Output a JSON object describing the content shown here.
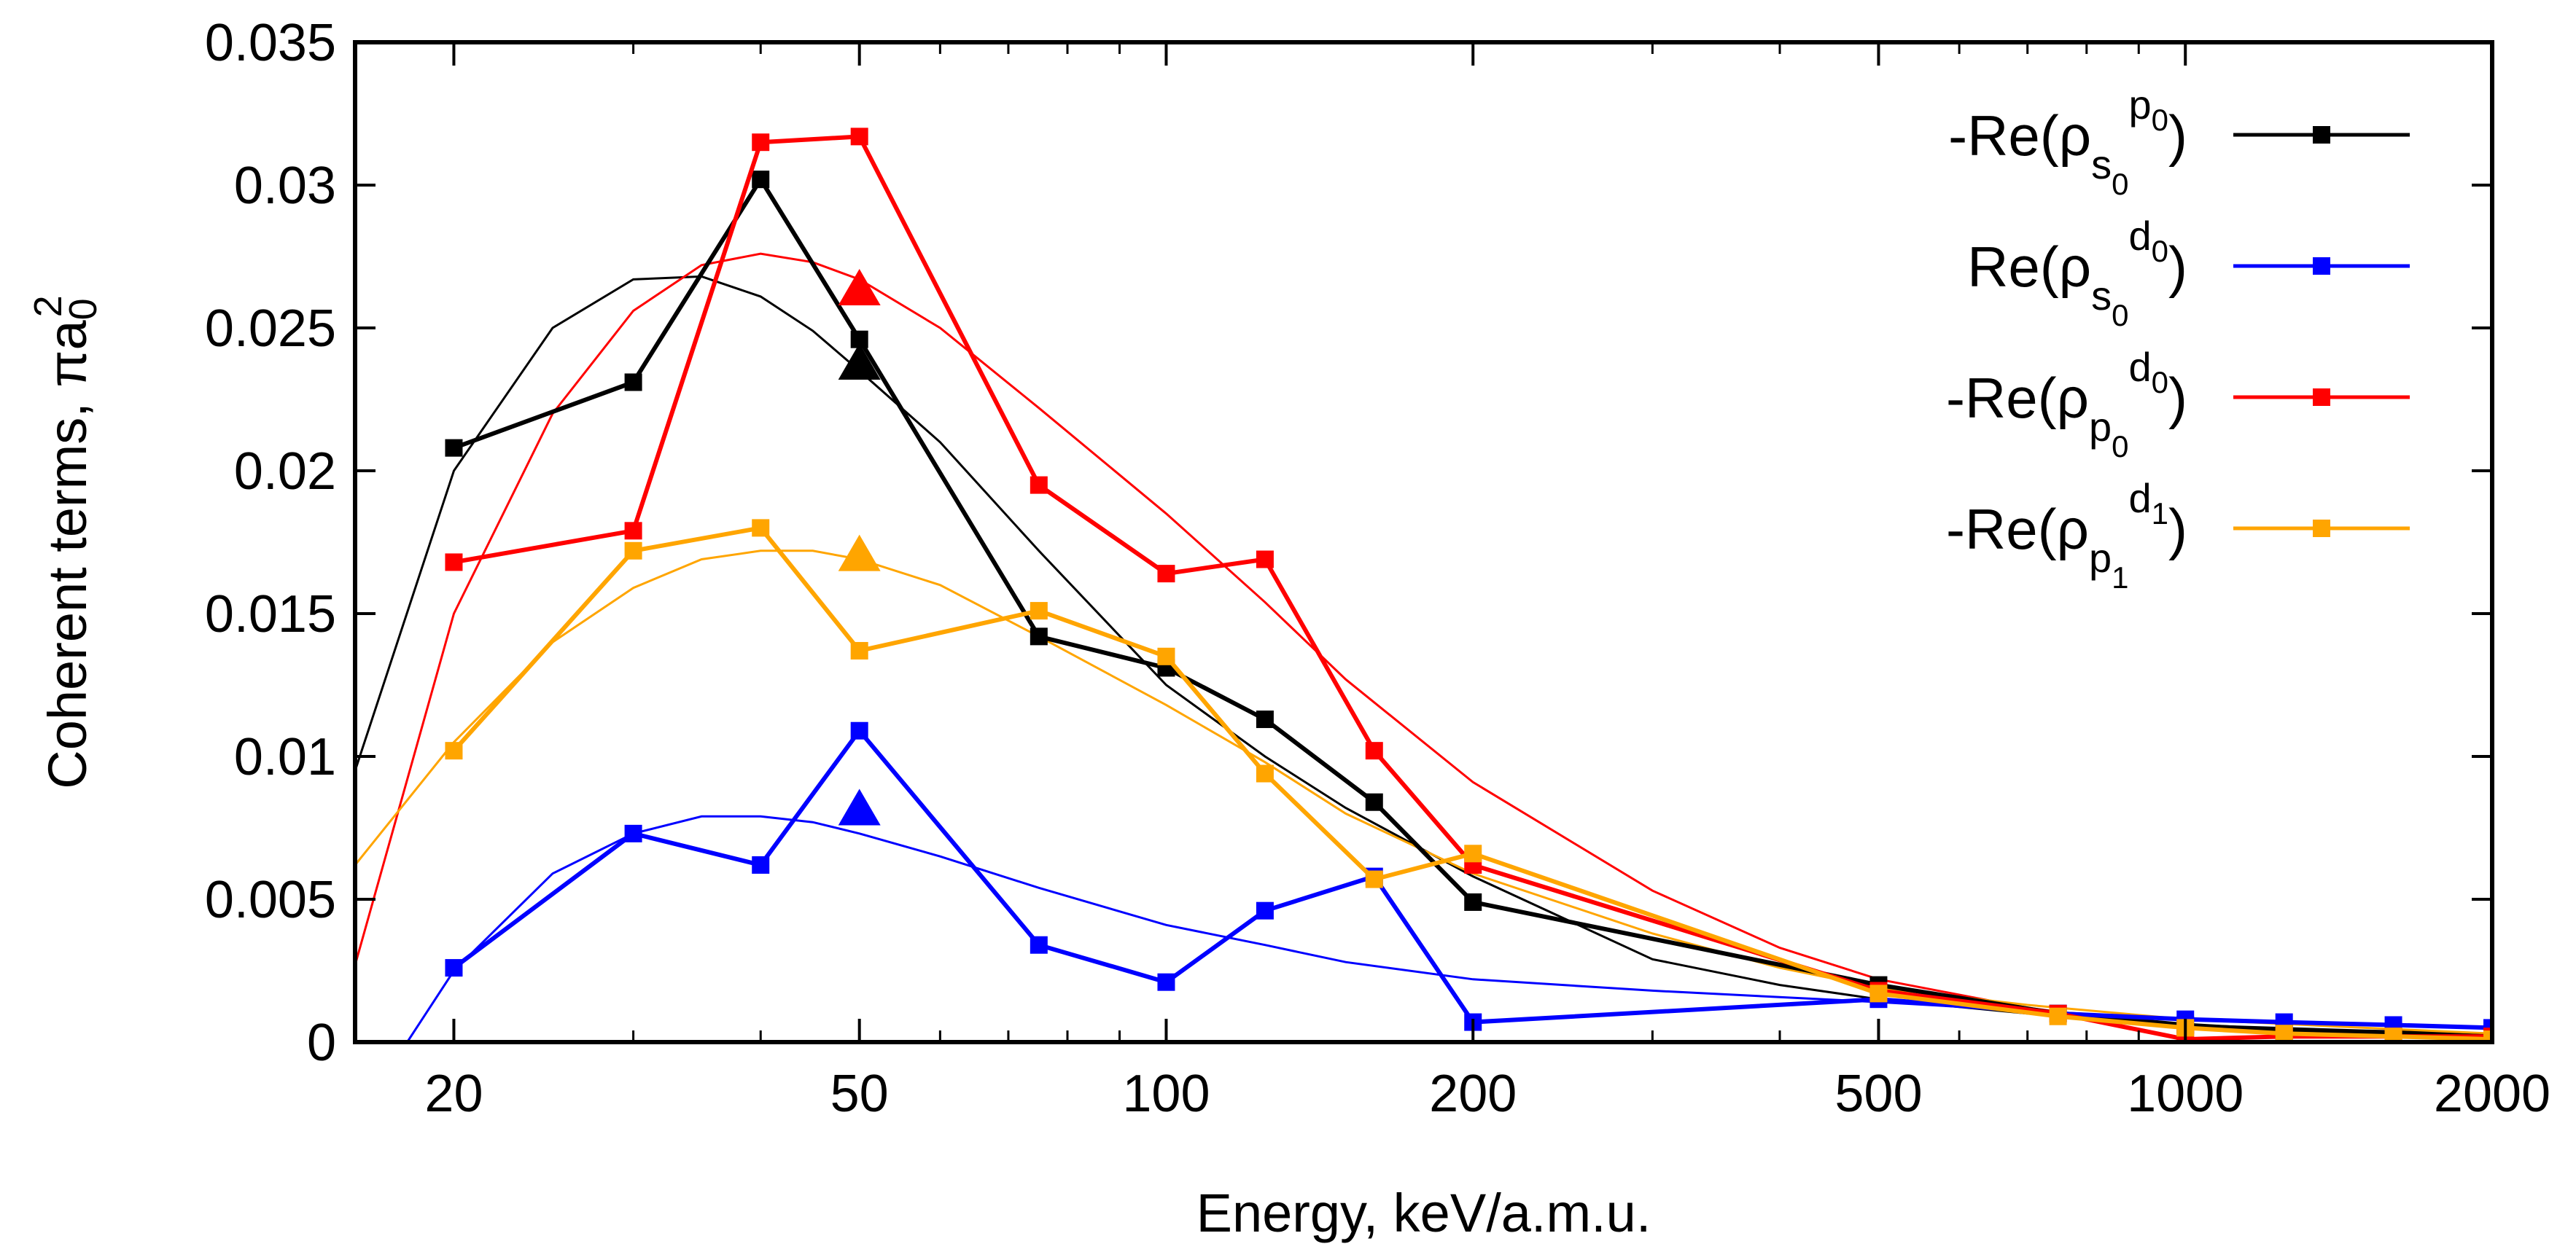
{
  "chart_data": {
    "type": "line",
    "title": "",
    "xlabel": "Energy, keV/a.m.u.",
    "ylabel": "Coherent terms, πa",
    "ylabel_sub": "0",
    "ylabel_sup": "2",
    "xscale": "log",
    "xlim": [
      16,
      2000
    ],
    "ylim": [
      0,
      0.035
    ],
    "x_ticks": [
      20,
      50,
      100,
      200,
      500,
      1000,
      2000
    ],
    "x_tick_labels": [
      "20",
      "50",
      "100",
      "200",
      "500",
      "1000",
      "2000"
    ],
    "y_ticks": [
      0,
      0.005,
      0.01,
      0.015,
      0.02,
      0.025,
      0.03,
      0.035
    ],
    "y_tick_labels": [
      "0",
      "0.005",
      "0.01",
      "0.015",
      "0.02",
      "0.025",
      "0.03",
      "0.035"
    ],
    "grid": false,
    "legend_position": "top-right",
    "series": [
      {
        "name": "-Re(ρs0p0)",
        "legend": {
          "prefix": "-Re(ρ",
          "sub": "s",
          "subsub": "0",
          "sup": "p",
          "supsub": "0",
          "suffix": ")"
        },
        "color": "#000000",
        "points": [
          [
            20,
            0.0208
          ],
          [
            30,
            0.0231
          ],
          [
            40,
            0.0302
          ],
          [
            50,
            0.0246
          ],
          [
            75,
            0.0142
          ],
          [
            100,
            0.0131
          ],
          [
            125,
            0.0113
          ],
          [
            160,
            0.0084
          ],
          [
            200,
            0.0049
          ],
          [
            500,
            0.002
          ],
          [
            750,
            0.001
          ],
          [
            1000,
            0.0006
          ],
          [
            1250,
            0.0004
          ],
          [
            1600,
            0.0003
          ],
          [
            2000,
            0.0002
          ]
        ],
        "theory": [
          [
            16,
            0.0095
          ],
          [
            20,
            0.02
          ],
          [
            25,
            0.025
          ],
          [
            30,
            0.0267
          ],
          [
            35,
            0.0268
          ],
          [
            40,
            0.0261
          ],
          [
            45,
            0.0249
          ],
          [
            50,
            0.0235
          ],
          [
            60,
            0.021
          ],
          [
            75,
            0.0172
          ],
          [
            100,
            0.0125
          ],
          [
            125,
            0.01
          ],
          [
            150,
            0.0082
          ],
          [
            200,
            0.0058
          ],
          [
            300,
            0.0029
          ],
          [
            400,
            0.002
          ],
          [
            500,
            0.0015
          ],
          [
            700,
            0.001
          ],
          [
            1000,
            0.0006
          ],
          [
            1500,
            0.0004
          ],
          [
            2000,
            0.0003
          ]
        ],
        "marker": [
          50,
          0.0237
        ]
      },
      {
        "name": "Re(ρs0d0)",
        "legend": {
          "prefix": "Re(ρ",
          "sub": "s",
          "subsub": "0",
          "sup": "d",
          "supsub": "0",
          "suffix": ")"
        },
        "color": "#0000ff",
        "points": [
          [
            20,
            0.0026
          ],
          [
            30,
            0.0073
          ],
          [
            40,
            0.0062
          ],
          [
            50,
            0.0109
          ],
          [
            75,
            0.0034
          ],
          [
            100,
            0.0021
          ],
          [
            125,
            0.0046
          ],
          [
            160,
            0.0058
          ],
          [
            200,
            0.0007
          ],
          [
            500,
            0.0015
          ],
          [
            750,
            0.001
          ],
          [
            1000,
            0.0008
          ],
          [
            1250,
            0.0007
          ],
          [
            1600,
            0.0006
          ],
          [
            2000,
            0.0005
          ]
        ],
        "theory": [
          [
            18,
            0.0
          ],
          [
            20,
            0.0025
          ],
          [
            25,
            0.0059
          ],
          [
            30,
            0.0073
          ],
          [
            35,
            0.0079
          ],
          [
            40,
            0.0079
          ],
          [
            45,
            0.0077
          ],
          [
            50,
            0.0073
          ],
          [
            60,
            0.0065
          ],
          [
            75,
            0.0054
          ],
          [
            100,
            0.0041
          ],
          [
            125,
            0.0034
          ],
          [
            150,
            0.0028
          ],
          [
            200,
            0.0022
          ],
          [
            300,
            0.0018
          ],
          [
            500,
            0.0014
          ],
          [
            700,
            0.0011
          ],
          [
            1000,
            0.0008
          ],
          [
            1500,
            0.0006
          ],
          [
            2000,
            0.0005
          ]
        ],
        "marker": [
          50,
          0.0081
        ]
      },
      {
        "name": "-Re(ρp0d0)",
        "legend": {
          "prefix": "-Re(ρ",
          "sub": "p",
          "subsub": "0",
          "sup": "d",
          "supsub": "0",
          "suffix": ")"
        },
        "color": "#ff0000",
        "points": [
          [
            20,
            0.0168
          ],
          [
            30,
            0.0179
          ],
          [
            40,
            0.0315
          ],
          [
            50,
            0.0317
          ],
          [
            75,
            0.0195
          ],
          [
            100,
            0.0164
          ],
          [
            125,
            0.0169
          ],
          [
            160,
            0.0102
          ],
          [
            200,
            0.0062
          ],
          [
            500,
            0.0018
          ],
          [
            750,
            0.001
          ],
          [
            1000,
            0.0001
          ],
          [
            1250,
            0.0002
          ],
          [
            1600,
            0.0002
          ],
          [
            2000,
            0.0002
          ]
        ],
        "theory": [
          [
            16,
            0.0027
          ],
          [
            20,
            0.015
          ],
          [
            25,
            0.022
          ],
          [
            30,
            0.0256
          ],
          [
            35,
            0.0272
          ],
          [
            40,
            0.0276
          ],
          [
            45,
            0.0273
          ],
          [
            50,
            0.0267
          ],
          [
            60,
            0.025
          ],
          [
            75,
            0.0222
          ],
          [
            100,
            0.0185
          ],
          [
            125,
            0.0154
          ],
          [
            150,
            0.0127
          ],
          [
            200,
            0.0091
          ],
          [
            300,
            0.0053
          ],
          [
            400,
            0.0033
          ],
          [
            500,
            0.0022
          ],
          [
            700,
            0.0012
          ],
          [
            1000,
            0.0005
          ],
          [
            1500,
            0.0002
          ],
          [
            2000,
            0.0001
          ]
        ],
        "marker": [
          50,
          0.0263
        ]
      },
      {
        "name": "-Re(ρp1d1)",
        "legend": {
          "prefix": "-Re(ρ",
          "sub": "p",
          "subsub": "1",
          "sup": "d",
          "supsub": "1",
          "suffix": ")"
        },
        "color": "#ffa500",
        "points": [
          [
            20,
            0.0102
          ],
          [
            30,
            0.0172
          ],
          [
            40,
            0.018
          ],
          [
            50,
            0.0137
          ],
          [
            75,
            0.0151
          ],
          [
            100,
            0.0135
          ],
          [
            125,
            0.0094
          ],
          [
            160,
            0.0057
          ],
          [
            200,
            0.0066
          ],
          [
            500,
            0.0017
          ],
          [
            750,
            0.0009
          ],
          [
            1000,
            0.0005
          ],
          [
            1250,
            0.0003
          ],
          [
            1600,
            0.0002
          ],
          [
            2000,
            0.0001
          ]
        ],
        "theory": [
          [
            16,
            0.0062
          ],
          [
            20,
            0.0105
          ],
          [
            25,
            0.014
          ],
          [
            30,
            0.0159
          ],
          [
            35,
            0.0169
          ],
          [
            40,
            0.0172
          ],
          [
            45,
            0.0172
          ],
          [
            50,
            0.0169
          ],
          [
            60,
            0.016
          ],
          [
            75,
            0.0142
          ],
          [
            100,
            0.0118
          ],
          [
            125,
            0.0098
          ],
          [
            150,
            0.008
          ],
          [
            200,
            0.0059
          ],
          [
            300,
            0.0038
          ],
          [
            400,
            0.0026
          ],
          [
            500,
            0.0019
          ],
          [
            700,
            0.0013
          ],
          [
            1000,
            0.0008
          ],
          [
            1500,
            0.0005
          ],
          [
            2000,
            0.0003
          ]
        ],
        "marker": [
          50,
          0.017
        ]
      }
    ]
  }
}
